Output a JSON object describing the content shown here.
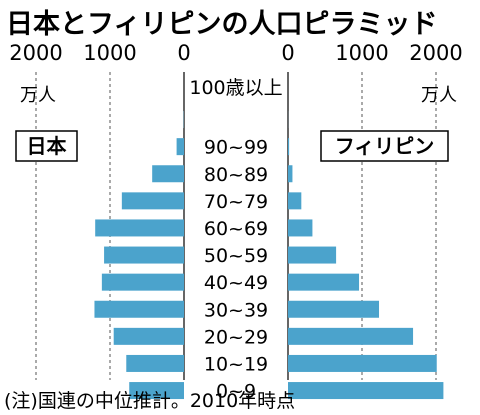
{
  "title": "日本とフィリピンの人口ピラミッド",
  "footnote": "(注)国連の中位推計。2010年時点",
  "chart_data": {
    "type": "bar",
    "orientation": "horizontal-pyramid",
    "unit": "万人",
    "categories": [
      "100歳以上",
      "90~99",
      "80~89",
      "70~79",
      "60~69",
      "50~59",
      "40~49",
      "30~39",
      "20~29",
      "10~19",
      "0~9"
    ],
    "xlim": [
      0,
      2000
    ],
    "ticks": [
      {
        "value": 0,
        "label": "0"
      },
      {
        "value": 1000,
        "label": "1000"
      },
      {
        "value": 2000,
        "label": "2000"
      }
    ],
    "grid": "vertical dashed at 1000",
    "series": [
      {
        "name": "日本",
        "side": "left",
        "color": "#4ba3cc",
        "values": [
          4,
          100,
          430,
          840,
          1200,
          1080,
          1110,
          1210,
          950,
          780,
          740
        ]
      },
      {
        "name": "フィリピン",
        "side": "right",
        "color": "#4ba3cc",
        "values": [
          1,
          15,
          60,
          180,
          330,
          650,
          960,
          1230,
          1690,
          2010,
          2100
        ]
      }
    ]
  }
}
